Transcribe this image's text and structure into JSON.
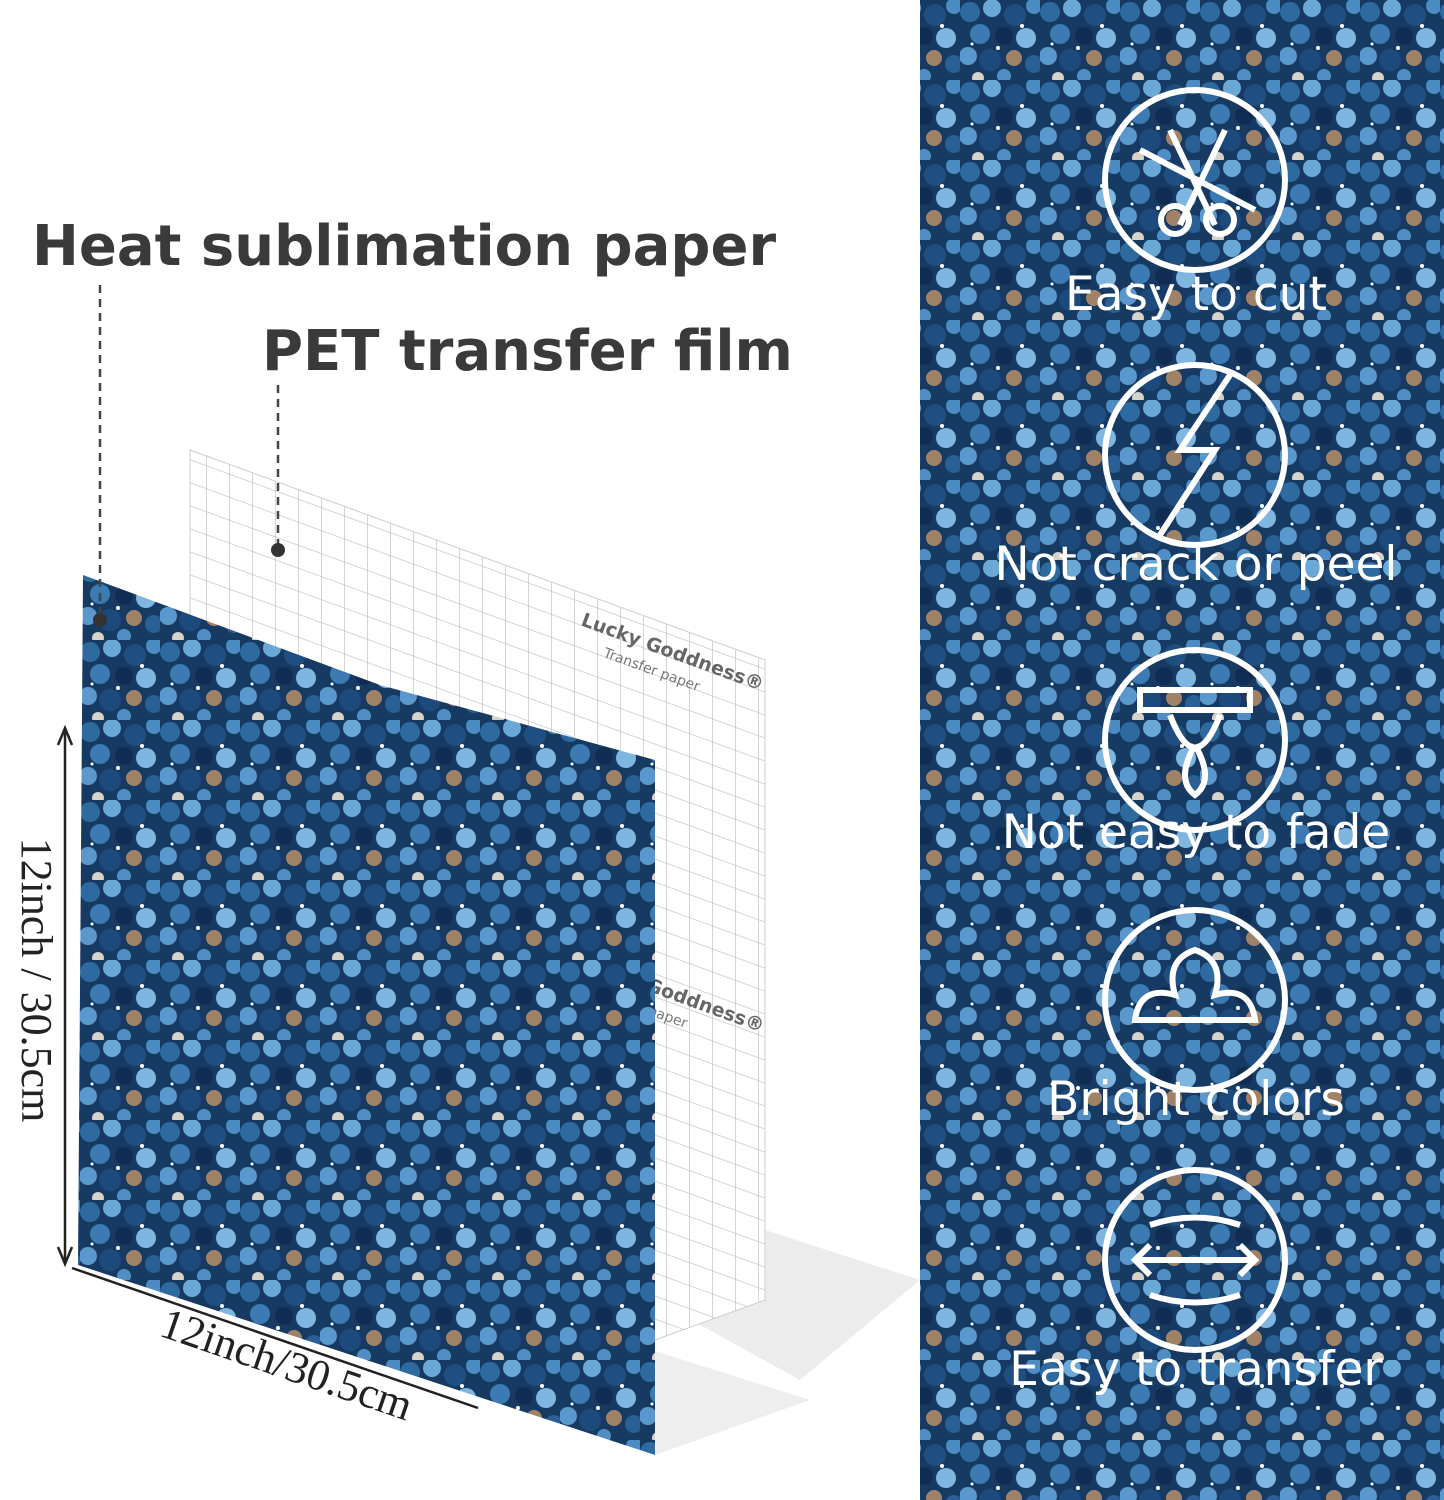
{
  "callouts": {
    "paper": "Heat sublimation paper",
    "film": "PET transfer film"
  },
  "brand": {
    "name": "Lucky Goddness®",
    "subtitle": "Transfer paper"
  },
  "brand_partial": {
    "name": "Goddness®",
    "subtitle": "r paper"
  },
  "dimensions": {
    "height": "12inch / 30.5cm",
    "width": "12inch/30.5cm"
  },
  "features": [
    "Easy to cut",
    "Not crack or peel",
    "Not easy to fade",
    "Bright colors",
    "Easy to transfer"
  ]
}
